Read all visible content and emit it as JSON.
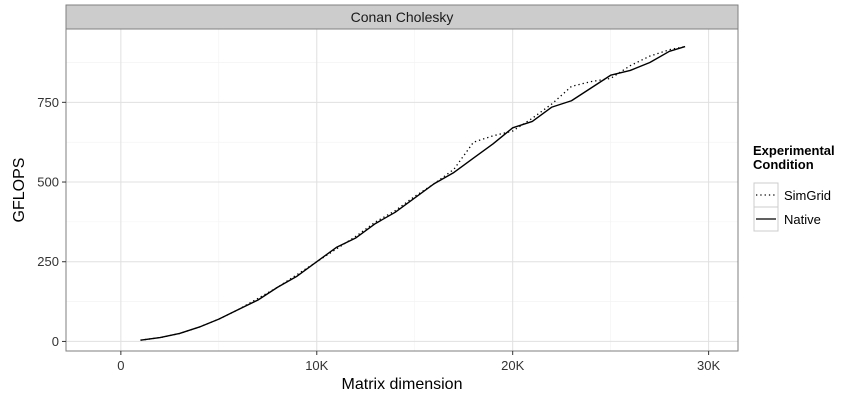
{
  "chart_data": {
    "type": "line",
    "title": "Conan Cholesky",
    "xlabel": "Matrix dimension",
    "ylabel": "GFLOPS",
    "xlim": [
      -2800,
      31500
    ],
    "ylim": [
      -30,
      980
    ],
    "x_ticks": [
      0,
      10000,
      20000,
      30000
    ],
    "x_tick_labels": [
      "0",
      "10K",
      "20K",
      "30K"
    ],
    "y_ticks": [
      0,
      250,
      500,
      750
    ],
    "y_tick_labels": [
      "0",
      "250",
      "500",
      "750"
    ],
    "grid": true,
    "legend": {
      "title": "Experimental Condition",
      "title_lines": [
        "Experimental",
        "Condition"
      ],
      "position": "right"
    },
    "series": [
      {
        "name": "SimGrid",
        "style": "dotted",
        "color": "#000000",
        "x": [
          1000,
          2000,
          3000,
          4000,
          5000,
          6000,
          7000,
          8000,
          9000,
          10000,
          11000,
          12000,
          13000,
          14000,
          15000,
          16000,
          17000,
          18000,
          19000,
          20000,
          21000,
          22000,
          23000,
          24000,
          25000,
          26000,
          27000,
          28000,
          28800
        ],
        "y": [
          4,
          12,
          25,
          45,
          70,
          100,
          135,
          170,
          210,
          250,
          290,
          330,
          375,
          410,
          455,
          495,
          540,
          625,
          645,
          660,
          700,
          745,
          800,
          815,
          825,
          865,
          895,
          915,
          925
        ]
      },
      {
        "name": "Native",
        "style": "solid",
        "color": "#000000",
        "x": [
          1000,
          2000,
          3000,
          4000,
          5000,
          6000,
          7000,
          8000,
          9000,
          10000,
          11000,
          12000,
          13000,
          14000,
          15000,
          16000,
          17000,
          18000,
          19000,
          20000,
          21000,
          22000,
          23000,
          24000,
          25000,
          26000,
          27000,
          28000,
          28800
        ],
        "y": [
          4,
          12,
          25,
          45,
          70,
          100,
          130,
          170,
          205,
          250,
          295,
          325,
          370,
          405,
          450,
          495,
          530,
          575,
          620,
          670,
          690,
          735,
          755,
          795,
          835,
          850,
          875,
          910,
          925
        ]
      }
    ]
  }
}
